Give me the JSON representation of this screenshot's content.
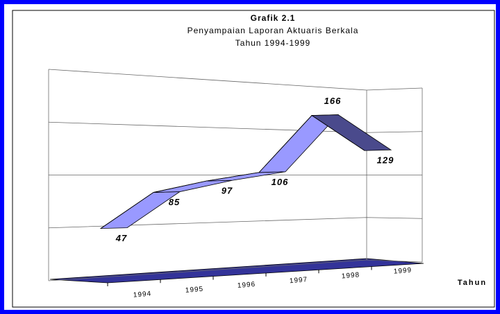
{
  "chart_data": {
    "type": "line3d",
    "title": "Grafik 2.1",
    "subtitle": [
      "Penyampaian Laporan Aktuaris Berkala",
      "Tahun 1994-1999"
    ],
    "x_label": "Tahun",
    "categories": [
      "1994",
      "1995",
      "1996",
      "1997",
      "1998",
      "1999"
    ],
    "values": [
      47,
      85,
      97,
      106,
      166,
      129
    ],
    "color": "#9999ff",
    "ylim": [
      0,
      200
    ],
    "yticks": [
      0,
      50,
      100,
      150,
      200
    ],
    "grid": true
  }
}
